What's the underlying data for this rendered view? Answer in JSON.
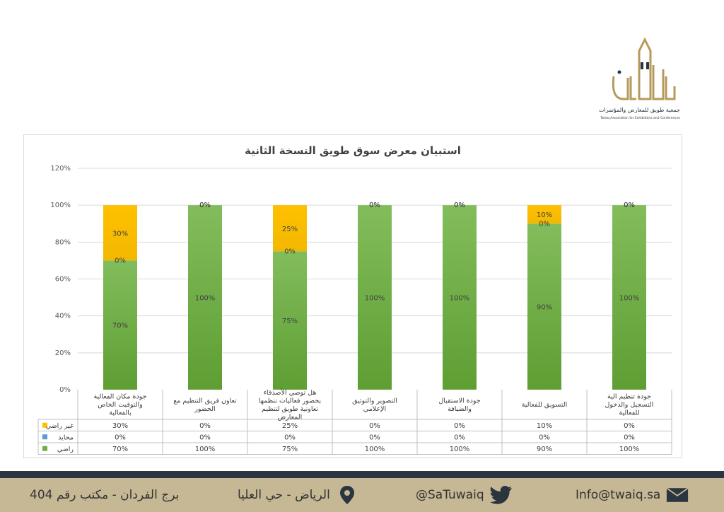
{
  "logo": {
    "name_ar": "جمعية طويق للمعارض والمؤتمرات",
    "name_en": "Twaiq Association for Exhibitions and Conferences"
  },
  "chart_data": {
    "type": "bar",
    "stacked": true,
    "title": "استبيان معرض سوق طويق النسخة الثانية",
    "ylim": [
      0,
      120
    ],
    "yticks": [
      "0%",
      "20%",
      "40%",
      "60%",
      "80%",
      "100%",
      "120%"
    ],
    "grid": true,
    "categories": [
      "جودة مكان الفعالية والتوقيت الخاص بالفعالية",
      "تعاون فريق التنظيم مع الحضور",
      "هل توصي الأصدقاء بحضور فعاليات تنظمها تعاونية طويق لتنظيم المعارض",
      "التصوير والتوثيق الإعلامي",
      "جودة الاستقبال والضيافة",
      "التسويق للفعالية",
      "جودة تنظيم الية التسجيل والدخول للفعالية"
    ],
    "series": [
      {
        "name": "راضي",
        "color": "#70ad47",
        "values": [
          70,
          100,
          75,
          100,
          100,
          90,
          100
        ],
        "labels": [
          "70%",
          "100%",
          "75%",
          "100%",
          "100%",
          "90%",
          "100%"
        ]
      },
      {
        "name": "محايد",
        "color": "#5b9bd5",
        "values": [
          0,
          0,
          0,
          0,
          0,
          0,
          0
        ],
        "labels": [
          "0%",
          "0%",
          "0%",
          "0%",
          "0%",
          "0%",
          "0%"
        ]
      },
      {
        "name": "غير راضي",
        "color": "#ffc000",
        "values": [
          30,
          0,
          25,
          0,
          0,
          10,
          0
        ],
        "labels": [
          "30%",
          "0%",
          "25%",
          "0%",
          "0%",
          "10%",
          "0%"
        ]
      }
    ],
    "table_rows_order": [
      2,
      1,
      0
    ]
  },
  "footer": {
    "address": "برج الفردان - مكتب رقم 404",
    "location": "الرياض - حي العليا",
    "twitter": "@SaTuwaiq",
    "email": "Info@twaiq.sa"
  }
}
